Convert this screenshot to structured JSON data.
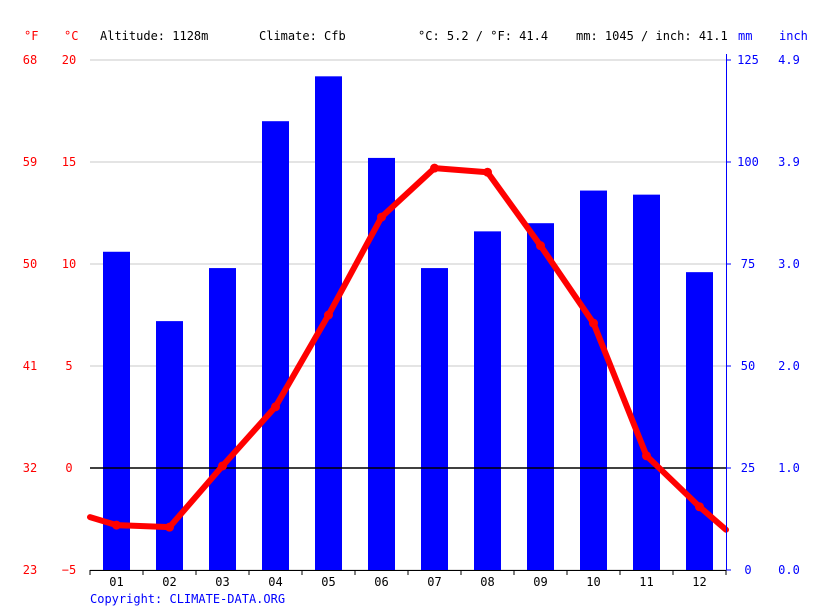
{
  "header": {
    "unit_f": "°F",
    "unit_c": "°C",
    "altitude": "Altitude: 1128m",
    "climate": "Climate: Cfb",
    "temp_avg": "°C: 5.2 / °F: 41.4",
    "precip_total": "mm: 1045 / inch: 41.1",
    "unit_mm": "mm",
    "unit_inch": "inch"
  },
  "footer": {
    "copyright": "Copyright: CLIMATE-DATA.ORG"
  },
  "colors": {
    "temperature": "#ff0000",
    "precipitation": "#0000ff",
    "zero_line": "#000000",
    "grid": "#c8c8c8"
  },
  "chart_data": {
    "type": "bar",
    "categories": [
      "01",
      "02",
      "03",
      "04",
      "05",
      "06",
      "07",
      "08",
      "09",
      "10",
      "11",
      "12"
    ],
    "series": [
      {
        "kind": "bar",
        "axis": "right",
        "unit": "mm",
        "values": [
          78,
          61,
          74,
          110,
          121,
          101,
          74,
          83,
          85,
          93,
          92,
          73
        ]
      },
      {
        "kind": "line",
        "axis": "left",
        "unit": "°C",
        "values": [
          -2.8,
          -2.9,
          0.1,
          3.0,
          7.5,
          12.3,
          14.7,
          14.5,
          10.9,
          7.1,
          0.6,
          -1.9
        ]
      }
    ],
    "left_axis_c": {
      "ticks": [
        "20",
        "15",
        "10",
        "5",
        "0",
        "−5"
      ],
      "range": [
        -5,
        20
      ]
    },
    "left_axis_f": {
      "ticks": [
        "68",
        "59",
        "50",
        "41",
        "32",
        "23"
      ]
    },
    "right_axis_mm": {
      "ticks": [
        "125",
        "100",
        "75",
        "50",
        "25",
        "0"
      ],
      "range": [
        0,
        125
      ]
    },
    "right_axis_inch": {
      "ticks": [
        "4.9",
        "3.9",
        "3.0",
        "2.0",
        "1.0",
        "0.0"
      ]
    },
    "grid": true
  }
}
